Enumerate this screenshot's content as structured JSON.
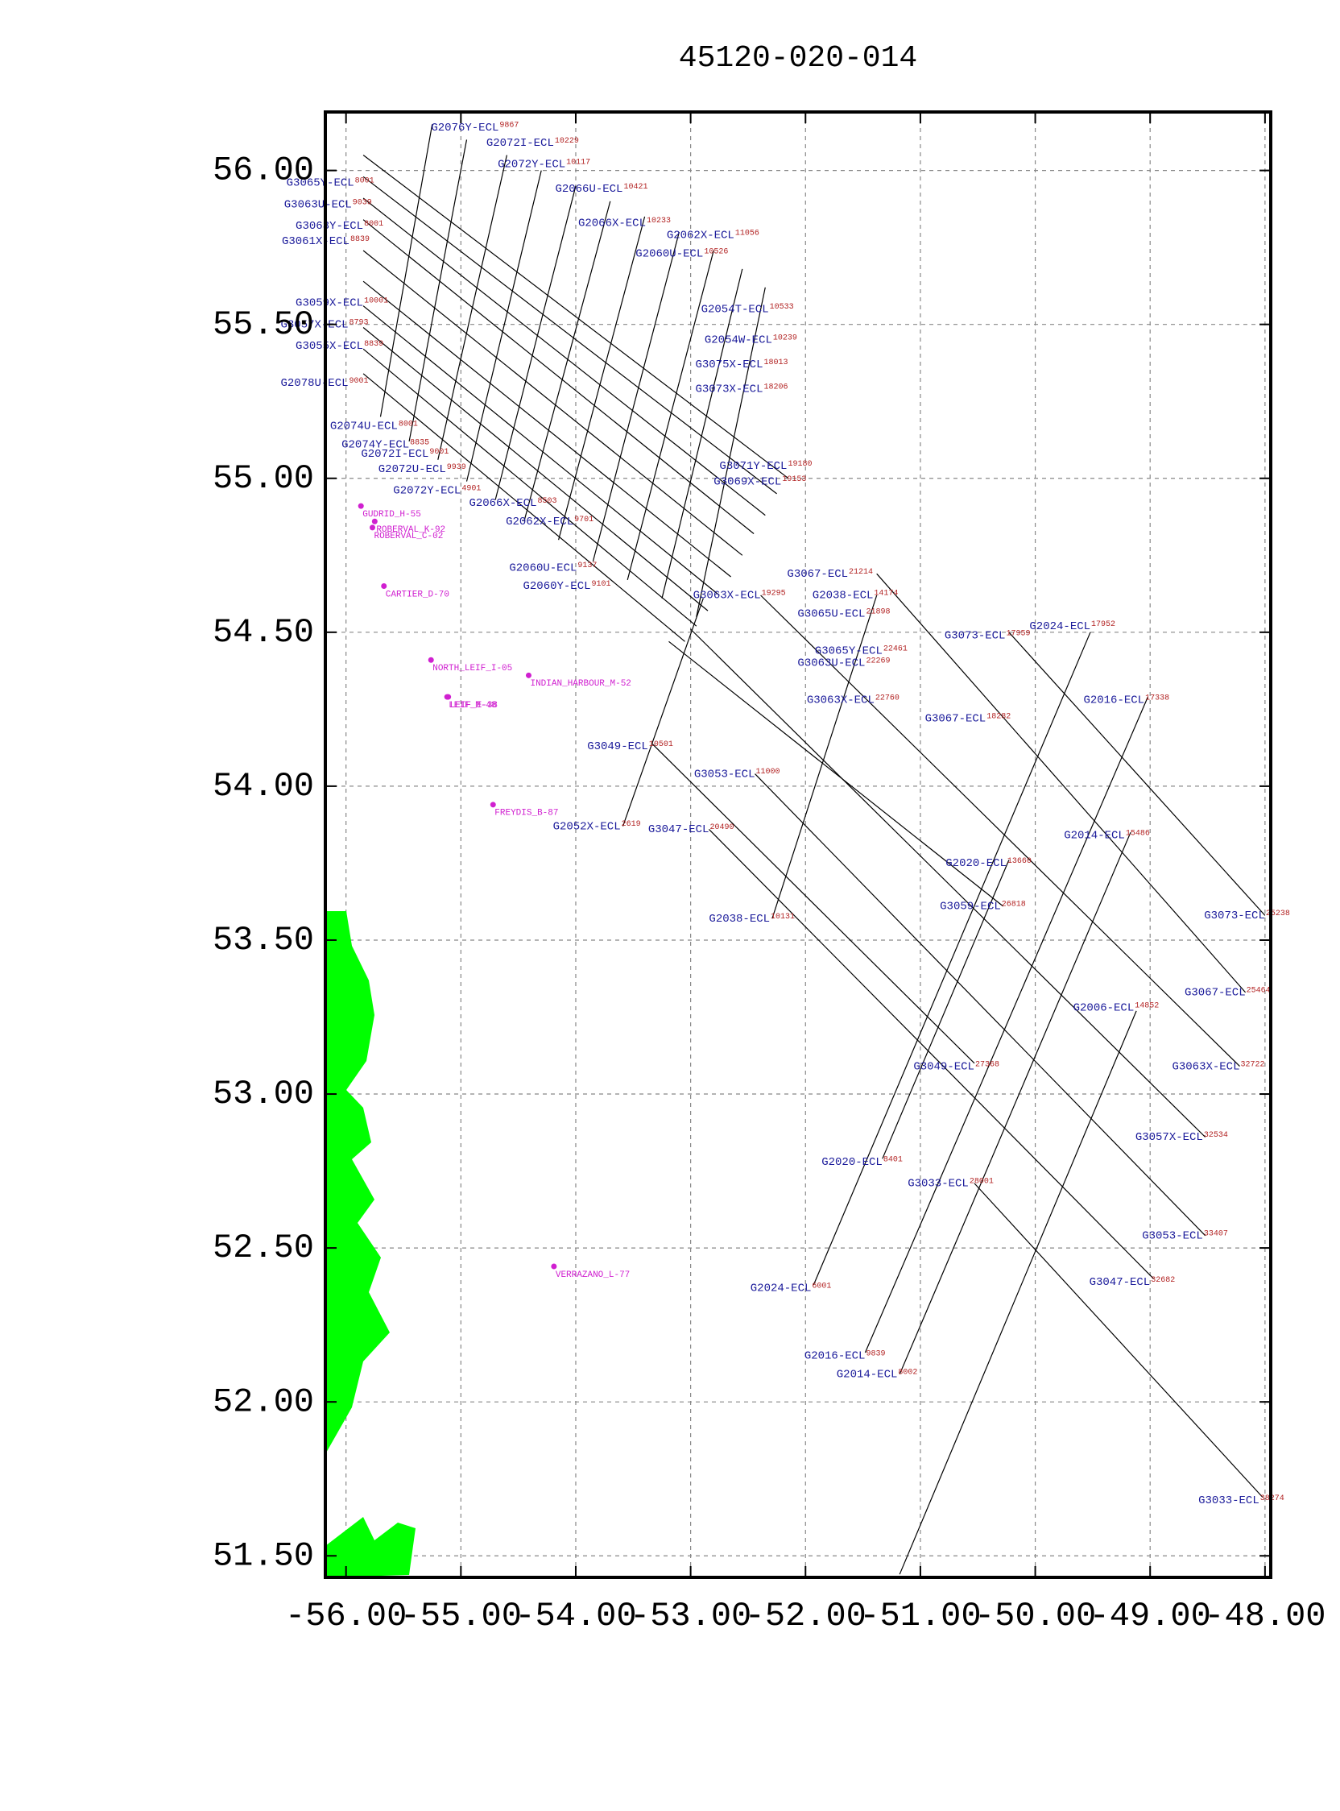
{
  "map": {
    "title": "45120-020-014",
    "xlim": [
      -56.18,
      -47.95
    ],
    "ylim": [
      51.43,
      56.19
    ],
    "xticks": [
      {
        "value": -56,
        "label": "-56.00"
      },
      {
        "value": -55,
        "label": "-55.00"
      },
      {
        "value": -54,
        "label": "-54.00"
      },
      {
        "value": -53,
        "label": "-53.00"
      },
      {
        "value": -52,
        "label": "-52.00"
      },
      {
        "value": -51,
        "label": "-51.00"
      },
      {
        "value": -50,
        "label": "-50.00"
      },
      {
        "value": -49,
        "label": "-49.00"
      },
      {
        "value": -48,
        "label": "-48.00"
      }
    ],
    "yticks": [
      {
        "value": 51.5,
        "label": "51.50"
      },
      {
        "value": 52,
        "label": "52.00"
      },
      {
        "value": 52.5,
        "label": "52.50"
      },
      {
        "value": 53,
        "label": "53.00"
      },
      {
        "value": 53.5,
        "label": "53.50"
      },
      {
        "value": 54,
        "label": "54.00"
      },
      {
        "value": 54.5,
        "label": "54.50"
      },
      {
        "value": 55,
        "label": "55.00"
      },
      {
        "value": 55.5,
        "label": "55.50"
      },
      {
        "value": 56,
        "label": "56.00"
      }
    ],
    "grid": true,
    "line_color": "#000000",
    "name_color": "#1a1a9a",
    "sp_color": "#b22222",
    "well_color": "#d020d0",
    "lines": [
      {
        "points": [
          [
            -55.85,
            56.05
          ],
          [
            -52.15,
            55.0
          ]
        ]
      },
      {
        "points": [
          [
            -55.85,
            55.98
          ],
          [
            -52.25,
            54.95
          ]
        ]
      },
      {
        "points": [
          [
            -55.85,
            55.91
          ],
          [
            -52.35,
            54.88
          ]
        ]
      },
      {
        "points": [
          [
            -55.85,
            55.84
          ],
          [
            -52.45,
            54.82
          ]
        ]
      },
      {
        "points": [
          [
            -55.85,
            55.74
          ],
          [
            -52.55,
            54.75
          ]
        ]
      },
      {
        "points": [
          [
            -55.85,
            55.64
          ],
          [
            -52.65,
            54.68
          ]
        ]
      },
      {
        "points": [
          [
            -55.85,
            55.56
          ],
          [
            -52.75,
            54.62
          ]
        ]
      },
      {
        "points": [
          [
            -55.85,
            55.49
          ],
          [
            -52.85,
            54.57
          ]
        ]
      },
      {
        "points": [
          [
            -55.85,
            55.42
          ],
          [
            -52.95,
            54.52
          ]
        ]
      },
      {
        "points": [
          [
            -55.85,
            55.34
          ],
          [
            -53.05,
            54.47
          ]
        ]
      },
      {
        "points": [
          [
            -55.7,
            55.2
          ],
          [
            -55.25,
            56.15
          ]
        ]
      },
      {
        "points": [
          [
            -55.45,
            55.12
          ],
          [
            -54.95,
            56.1
          ]
        ]
      },
      {
        "points": [
          [
            -55.2,
            55.06
          ],
          [
            -54.6,
            56.05
          ]
        ]
      },
      {
        "points": [
          [
            -54.95,
            54.99
          ],
          [
            -54.3,
            56.0
          ]
        ]
      },
      {
        "points": [
          [
            -54.7,
            54.93
          ],
          [
            -54.0,
            55.95
          ]
        ]
      },
      {
        "points": [
          [
            -54.45,
            54.86
          ],
          [
            -53.7,
            55.9
          ]
        ]
      },
      {
        "points": [
          [
            -54.15,
            54.8
          ],
          [
            -53.4,
            55.85
          ]
        ]
      },
      {
        "points": [
          [
            -53.85,
            54.73
          ],
          [
            -53.1,
            55.8
          ]
        ]
      },
      {
        "points": [
          [
            -53.55,
            54.67
          ],
          [
            -52.8,
            55.74
          ]
        ]
      },
      {
        "points": [
          [
            -53.25,
            54.61
          ],
          [
            -52.55,
            55.68
          ]
        ]
      },
      {
        "points": [
          [
            -52.95,
            54.55
          ],
          [
            -52.35,
            55.62
          ]
        ]
      },
      {
        "points": [
          [
            -50.23,
            54.5
          ],
          [
            -48.0,
            53.58
          ]
        ]
      },
      {
        "points": [
          [
            -51.38,
            54.69
          ],
          [
            -48.17,
            53.33
          ]
        ]
      },
      {
        "points": [
          [
            -52.39,
            54.62
          ],
          [
            -48.22,
            53.09
          ]
        ]
      },
      {
        "points": [
          [
            -53.0,
            54.51
          ],
          [
            -48.52,
            52.86
          ]
        ]
      },
      {
        "points": [
          [
            -52.44,
            54.04
          ],
          [
            -48.52,
            52.54
          ]
        ]
      },
      {
        "points": [
          [
            -52.84,
            53.86
          ],
          [
            -48.97,
            52.4
          ]
        ]
      },
      {
        "points": [
          [
            -50.53,
            52.71
          ],
          [
            -48.02,
            51.69
          ]
        ]
      },
      {
        "points": [
          [
            -53.34,
            54.14
          ],
          [
            -50.53,
            53.1
          ]
        ]
      },
      {
        "points": [
          [
            -53.19,
            54.47
          ],
          [
            -50.28,
            53.61
          ]
        ]
      },
      {
        "points": [
          [
            -49.52,
            54.5
          ],
          [
            -51.93,
            52.38
          ]
        ]
      },
      {
        "points": [
          [
            -49.02,
            54.29
          ],
          [
            -51.48,
            52.16
          ]
        ]
      },
      {
        "points": [
          [
            -49.17,
            53.85
          ],
          [
            -51.18,
            52.09
          ]
        ]
      },
      {
        "points": [
          [
            -49.12,
            53.27
          ],
          [
            -51.18,
            51.44
          ]
        ]
      },
      {
        "points": [
          [
            -50.23,
            53.76
          ],
          [
            -51.33,
            52.79
          ]
        ]
      },
      {
        "points": [
          [
            -51.38,
            54.62
          ],
          [
            -52.29,
            53.57
          ]
        ]
      },
      {
        "points": [
          [
            -53.59,
            53.87
          ],
          [
            -52.89,
            54.61
          ]
        ]
      }
    ],
    "labels": [
      {
        "text": "G3073-ECL",
        "sp": 17959,
        "lon": -50.26,
        "lat": 54.49
      },
      {
        "text": "G3073-ECL",
        "sp": 25238,
        "lon": -48.0,
        "lat": 53.58
      },
      {
        "text": "G3067-ECL",
        "sp": 21214,
        "lon": -51.63,
        "lat": 54.69
      },
      {
        "text": "G3067-ECL",
        "sp": 25464,
        "lon": -48.17,
        "lat": 53.33
      },
      {
        "text": "G3063X-ECL",
        "sp": 32722,
        "lon": -48.22,
        "lat": 53.09
      },
      {
        "text": "G3057X-ECL",
        "sp": 32534,
        "lon": -48.54,
        "lat": 52.86
      },
      {
        "text": "G3053-ECL",
        "sp": 33407,
        "lon": -48.54,
        "lat": 52.54
      },
      {
        "text": "G3047-ECL",
        "sp": 32682,
        "lon": -49.0,
        "lat": 52.39
      },
      {
        "text": "G3033-ECL",
        "sp": 38274,
        "lon": -48.05,
        "lat": 51.68
      },
      {
        "text": "G3033-ECL",
        "sp": 28001,
        "lon": -50.58,
        "lat": 52.71
      },
      {
        "text": "G3049-ECL",
        "sp": 27368,
        "lon": -50.53,
        "lat": 53.09
      },
      {
        "text": "G3049-ECL",
        "sp": 10501,
        "lon": -53.37,
        "lat": 54.13
      },
      {
        "text": "G3053-ECL",
        "sp": 11000,
        "lon": -52.44,
        "lat": 54.04
      },
      {
        "text": "G3047-ECL",
        "sp": 20490,
        "lon": -52.84,
        "lat": 53.86
      },
      {
        "text": "G3059-ECL",
        "sp": 26818,
        "lon": -50.3,
        "lat": 53.61
      },
      {
        "text": "G3063U-ECL",
        "sp": 22269,
        "lon": -51.48,
        "lat": 54.4
      },
      {
        "text": "G3065Y-ECL",
        "sp": 22461,
        "lon": -51.33,
        "lat": 54.44
      },
      {
        "text": "G3065U-ECL",
        "sp": 21898,
        "lon": -51.48,
        "lat": 54.56
      },
      {
        "text": "G2038-ECL",
        "sp": 14174,
        "lon": -51.41,
        "lat": 54.62
      },
      {
        "text": "G2038-ECL",
        "sp": 10131,
        "lon": -52.31,
        "lat": 53.57
      },
      {
        "text": "G3063X-ECL",
        "sp": 22760,
        "lon": -51.4,
        "lat": 54.28
      },
      {
        "text": "G3067-ECL",
        "sp": 18282,
        "lon": -50.43,
        "lat": 54.22
      },
      {
        "text": "G2024-ECL",
        "sp": 17952,
        "lon": -49.52,
        "lat": 54.52
      },
      {
        "text": "G2024-ECL",
        "sp": 6001,
        "lon": -51.95,
        "lat": 52.37
      },
      {
        "text": "G2016-ECL",
        "sp": 17338,
        "lon": -49.05,
        "lat": 54.28
      },
      {
        "text": "G2016-ECL",
        "sp": 9839,
        "lon": -51.48,
        "lat": 52.15
      },
      {
        "text": "G2014-ECL",
        "sp": 15486,
        "lon": -49.22,
        "lat": 53.84
      },
      {
        "text": "G2014-ECL",
        "sp": 8002,
        "lon": -51.2,
        "lat": 52.09
      },
      {
        "text": "G2006-ECL",
        "sp": 14852,
        "lon": -49.14,
        "lat": 53.28
      },
      {
        "text": "G2020-ECL",
        "sp": 13660,
        "lon": -50.25,
        "lat": 53.75
      },
      {
        "text": "G2020-ECL",
        "sp": 8401,
        "lon": -51.33,
        "lat": 52.78
      },
      {
        "text": "G2052X-ECL",
        "sp": 2619,
        "lon": -53.61,
        "lat": 53.87
      },
      {
        "text": "G3063X-ECL",
        "sp": 19295,
        "lon": -52.39,
        "lat": 54.62
      },
      {
        "text": "G3065Y-ECL",
        "sp": 8001,
        "lon": -55.93,
        "lat": 55.96
      },
      {
        "text": "G3063U-ECL",
        "sp": 9039,
        "lon": -55.95,
        "lat": 55.89
      },
      {
        "text": "G3063Y-ECL",
        "sp": 8001,
        "lon": -55.85,
        "lat": 55.82
      },
      {
        "text": "G3061X-ECL",
        "sp": 8839,
        "lon": -55.97,
        "lat": 55.77
      },
      {
        "text": "G3059X-ECL",
        "sp": 10001,
        "lon": -55.85,
        "lat": 55.57
      },
      {
        "text": "G3057X-ECL",
        "sp": 8793,
        "lon": -55.98,
        "lat": 55.5
      },
      {
        "text": "G3055X-ECL",
        "sp": 8839,
        "lon": -55.85,
        "lat": 55.43
      },
      {
        "text": "G2078U-ECL",
        "sp": 9001,
        "lon": -55.98,
        "lat": 55.31
      },
      {
        "text": "G2074U-ECL",
        "sp": 8001,
        "lon": -55.55,
        "lat": 55.17
      },
      {
        "text": "G2074Y-ECL",
        "sp": 8835,
        "lon": -55.45,
        "lat": 55.11
      },
      {
        "text": "G2072I-ECL",
        "sp": 9001,
        "lon": -55.28,
        "lat": 55.08
      },
      {
        "text": "G2072U-ECL",
        "sp": 9939,
        "lon": -55.13,
        "lat": 55.03
      },
      {
        "text": "G2072Y-ECL",
        "sp": 4901,
        "lon": -55.0,
        "lat": 54.96
      },
      {
        "text": "G2066X-ECL",
        "sp": 8503,
        "lon": -54.34,
        "lat": 54.92
      },
      {
        "text": "G2062X-ECL",
        "sp": 9701,
        "lon": -54.02,
        "lat": 54.86
      },
      {
        "text": "G2060U-ECL",
        "sp": 9137,
        "lon": -53.99,
        "lat": 54.71
      },
      {
        "text": "G2060Y-ECL",
        "sp": 9101,
        "lon": -53.87,
        "lat": 54.65
      },
      {
        "text": "G2054T-ECL",
        "sp": 10533,
        "lon": -52.32,
        "lat": 55.55
      },
      {
        "text": "G2054W-ECL",
        "sp": 10239,
        "lon": -52.29,
        "lat": 55.45
      },
      {
        "text": "G3075X-ECL",
        "sp": 18013,
        "lon": -52.37,
        "lat": 55.37
      },
      {
        "text": "G3073X-ECL",
        "sp": 18206,
        "lon": -52.37,
        "lat": 55.29
      },
      {
        "text": "G3071Y-ECL",
        "sp": 19180,
        "lon": -52.16,
        "lat": 55.04
      },
      {
        "text": "G3069X-ECL",
        "sp": 19153,
        "lon": -52.21,
        "lat": 54.99
      },
      {
        "text": "G2066X-ECL",
        "sp": 10233,
        "lon": -53.39,
        "lat": 55.83
      },
      {
        "text": "G2066U-ECL",
        "sp": 10421,
        "lon": -53.59,
        "lat": 55.94
      },
      {
        "text": "G2062X-ECL",
        "sp": 11056,
        "lon": -52.62,
        "lat": 55.79
      },
      {
        "text": "G2060U-ECL",
        "sp": 10526,
        "lon": -52.89,
        "lat": 55.73
      },
      {
        "text": "G2076Y-ECL",
        "sp": 9867,
        "lon": -54.67,
        "lat": 56.14
      },
      {
        "text": "G2072I-ECL",
        "sp": 10229,
        "lon": -54.19,
        "lat": 56.09
      },
      {
        "text": "G2072Y-ECL",
        "sp": 10117,
        "lon": -54.09,
        "lat": 56.02
      }
    ],
    "wells": [
      {
        "name": "GUDRID_H-55",
        "lon": -55.87,
        "lat": 54.91
      },
      {
        "name": "ROBERVAL_K-92",
        "lon": -55.75,
        "lat": 54.86
      },
      {
        "name": "ROBERVAL_C-02",
        "lon": -55.77,
        "lat": 54.84
      },
      {
        "name": "CARTIER_D-70",
        "lon": -55.67,
        "lat": 54.65
      },
      {
        "name": "NORTH_LEIF_I-05",
        "lon": -55.26,
        "lat": 54.41
      },
      {
        "name": "INDIAN_HARBOUR_M-52",
        "lon": -54.41,
        "lat": 54.36
      },
      {
        "name": "LEIF_M-48",
        "lon": -55.12,
        "lat": 54.29
      },
      {
        "name": "LEIF_E-38",
        "lon": -55.11,
        "lat": 54.29
      },
      {
        "name": "FREYDIS_B-87",
        "lon": -54.72,
        "lat": 53.94
      },
      {
        "name": "VERRAZANO_L-77",
        "lon": -54.19,
        "lat": 52.44
      }
    ]
  }
}
